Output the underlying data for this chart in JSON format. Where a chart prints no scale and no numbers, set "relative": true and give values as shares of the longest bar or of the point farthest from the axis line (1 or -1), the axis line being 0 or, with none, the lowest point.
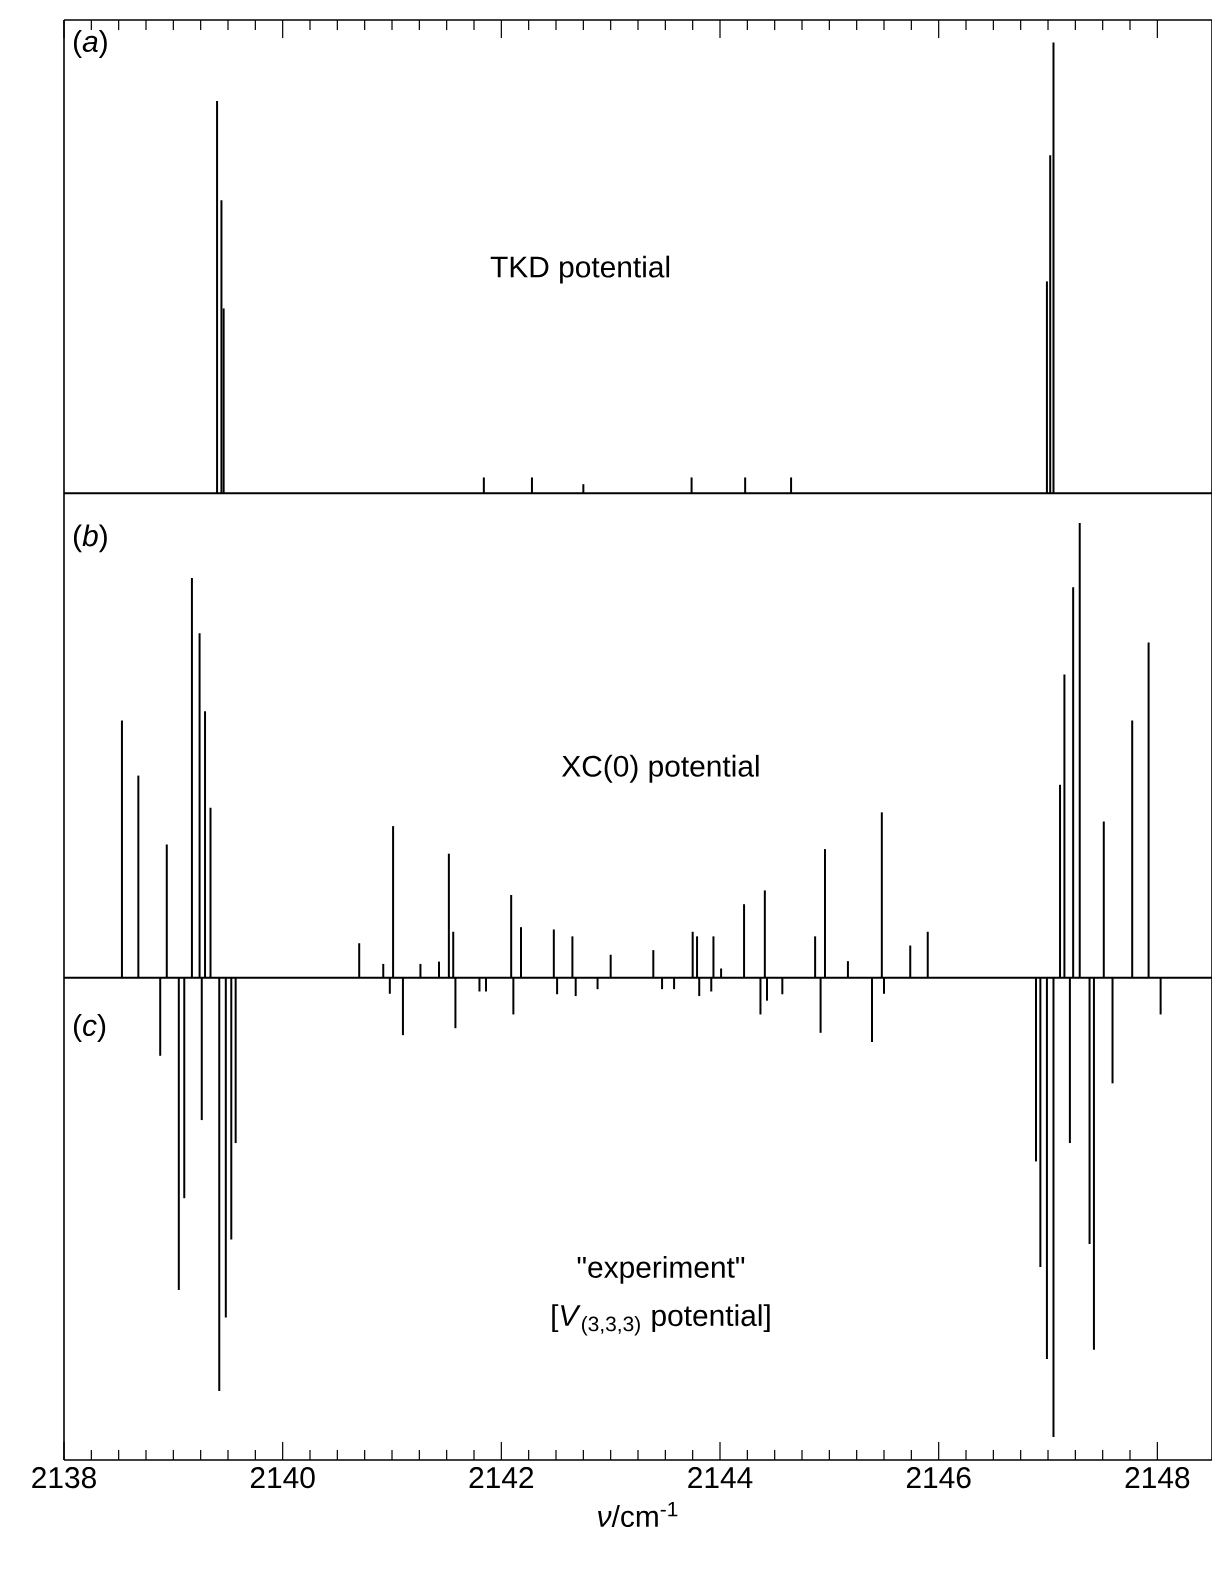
{
  "chart_data": [
    {
      "type": "bar",
      "relative": true,
      "xlim": [
        2138,
        2148.5
      ],
      "xticks": [
        2138,
        2140,
        2142,
        2144,
        2146,
        2148
      ],
      "tick_labels": false,
      "color": "#000000",
      "annotations": [
        "(*a*)",
        "TKD potential"
      ],
      "x": [
        2139.4,
        2139.44,
        2139.46,
        2141.84,
        2142.28,
        2142.75,
        2143.74,
        2144.23,
        2144.65,
        2146.99,
        2147.02,
        2147.05
      ],
      "values": [
        0.87,
        0.65,
        0.41,
        0.035,
        0.035,
        0.02,
        0.035,
        0.035,
        0.035,
        0.47,
        0.75,
        1
      ]
    },
    {
      "type": "bar",
      "relative": true,
      "xlim": [
        2138,
        2148.5
      ],
      "xticks": [
        2138,
        2140,
        2142,
        2144,
        2146,
        2148
      ],
      "tick_labels": "x",
      "xlabel": "*ν*/cm$^{-1}$",
      "color": "#000000",
      "annotations": [
        "(*b*)",
        "XC(0) potential",
        "(*c*)",
        "\"experiment\"",
        "[*V*$_{(3,3,3)}$ potential]"
      ],
      "x": [
        2138.53,
        2138.68,
        2138.88,
        2138.94,
        2139.05,
        2139.1,
        2139.17,
        2139.24,
        2139.26,
        2139.29,
        2139.34,
        2139.42,
        2139.48,
        2139.53,
        2139.57,
        2140.7,
        2140.92,
        2140.98,
        2141.01,
        2141.1,
        2141.26,
        2141.43,
        2141.52,
        2141.56,
        2141.58,
        2141.8,
        2141.86,
        2142.09,
        2142.11,
        2142.18,
        2142.48,
        2142.51,
        2142.65,
        2142.68,
        2142.88,
        2143.0,
        2143.39,
        2143.47,
        2143.58,
        2143.75,
        2143.79,
        2143.81,
        2143.92,
        2143.94,
        2144.01,
        2144.22,
        2144.37,
        2144.41,
        2144.43,
        2144.57,
        2144.87,
        2144.92,
        2144.96,
        2145.17,
        2145.39,
        2145.48,
        2145.5,
        2145.74,
        2145.9,
        2146.89,
        2146.93,
        2146.99,
        2147.05,
        2147.11,
        2147.15,
        2147.2,
        2147.23,
        2147.29,
        2147.38,
        2147.42,
        2147.51,
        2147.59,
        2147.77,
        2147.92,
        2148.03
      ],
      "values": [
        0.56,
        0.44,
        -0.17,
        0.29,
        -0.68,
        -0.48,
        0.87,
        0.75,
        -0.31,
        0.58,
        0.37,
        -0.9,
        -0.74,
        -0.57,
        -0.36,
        0.075,
        0.03,
        -0.035,
        0.33,
        -0.125,
        0.03,
        0.035,
        0.27,
        0.1,
        -0.11,
        -0.03,
        -0.03,
        0.18,
        -0.08,
        0.11,
        0.105,
        -0.036,
        0.09,
        -0.04,
        -0.025,
        0.05,
        0.06,
        -0.025,
        -0.025,
        0.1,
        0.09,
        -0.04,
        -0.03,
        0.09,
        0.02,
        0.16,
        -0.08,
        0.19,
        -0.05,
        -0.036,
        0.09,
        -0.12,
        0.28,
        0.036,
        -0.14,
        0.36,
        -0.035,
        0.07,
        0.1,
        -0.4,
        -0.63,
        -0.83,
        -1,
        0.42,
        0.66,
        -0.36,
        0.85,
        0.99,
        -0.58,
        -0.81,
        0.34,
        -0.23,
        0.56,
        0.73,
        -0.08
      ]
    }
  ]
}
